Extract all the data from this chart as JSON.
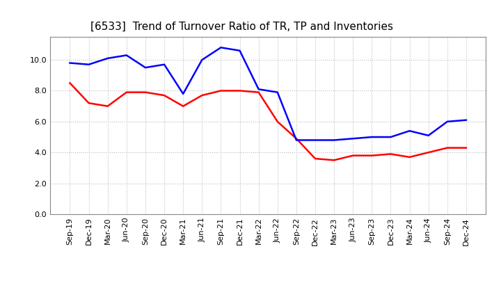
{
  "title": "[6533]  Trend of Turnover Ratio of TR, TP and Inventories",
  "x_labels": [
    "Sep-19",
    "Dec-19",
    "Mar-20",
    "Jun-20",
    "Sep-20",
    "Dec-20",
    "Mar-21",
    "Jun-21",
    "Sep-21",
    "Dec-21",
    "Mar-22",
    "Jun-22",
    "Sep-22",
    "Dec-22",
    "Mar-23",
    "Jun-23",
    "Sep-23",
    "Dec-23",
    "Mar-24",
    "Jun-24",
    "Sep-24",
    "Dec-24"
  ],
  "trade_receivables": [
    8.5,
    7.2,
    7.0,
    7.9,
    7.9,
    7.7,
    7.0,
    7.7,
    8.0,
    8.0,
    7.9,
    6.0,
    4.9,
    3.6,
    3.5,
    3.8,
    3.8,
    3.9,
    3.7,
    4.0,
    4.3,
    4.3
  ],
  "trade_payables": [
    9.8,
    9.7,
    10.1,
    10.3,
    9.5,
    9.7,
    7.8,
    10.0,
    10.8,
    10.6,
    8.1,
    7.9,
    4.8,
    4.8,
    4.8,
    4.9,
    5.0,
    5.0,
    5.4,
    5.1,
    6.0,
    6.1
  ],
  "inventories": [
    null,
    null,
    null,
    null,
    null,
    null,
    null,
    null,
    null,
    null,
    null,
    null,
    null,
    null,
    null,
    null,
    null,
    null,
    null,
    null,
    null,
    null
  ],
  "tr_color": "#ff0000",
  "tp_color": "#0000ff",
  "inv_color": "#008000",
  "ylim": [
    0.0,
    11.5
  ],
  "yticks": [
    0.0,
    2.0,
    4.0,
    6.0,
    8.0,
    10.0
  ],
  "background_color": "#ffffff",
  "grid_color": "#bbbbbb",
  "title_fontsize": 11,
  "axis_fontsize": 8,
  "legend_fontsize": 9
}
